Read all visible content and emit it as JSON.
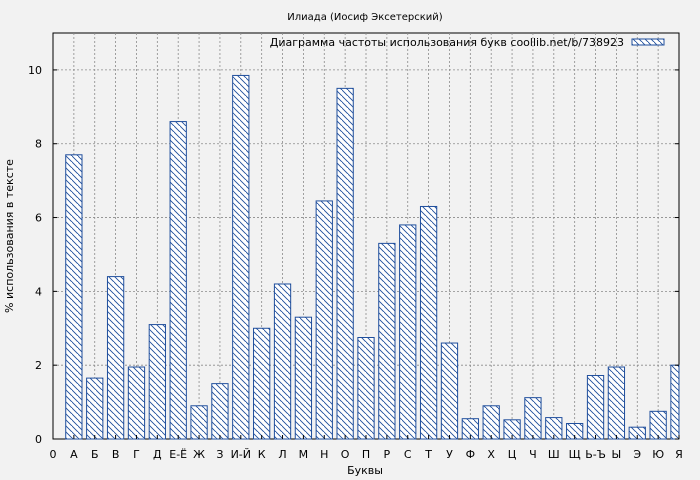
{
  "chart_data": {
    "type": "bar",
    "title": "Илиада (Иосиф Эксетерский)",
    "xlabel": "Буквы",
    "ylabel": "% использования в тексте",
    "legend": "Диаграмма частоты использования букв coollib.net/b/738923",
    "legend_position": "top-right",
    "grid": true,
    "x_ticks": [
      "0",
      "А",
      "Б",
      "В",
      "Г",
      "Д",
      "Е-Ё",
      "Ж",
      "З",
      "И-Й",
      "К",
      "Л",
      "М",
      "Н",
      "О",
      "П",
      "Р",
      "С",
      "Т",
      "У",
      "Ф",
      "Х",
      "Ц",
      "Ч",
      "Ш",
      "Щ",
      "Ь-Ъ",
      "Ы",
      "Э",
      "Ю",
      "Я"
    ],
    "categories": [
      "А",
      "Б",
      "В",
      "Г",
      "Д",
      "Е-Ё",
      "Ж",
      "З",
      "И-Й",
      "К",
      "Л",
      "М",
      "Н",
      "О",
      "П",
      "Р",
      "С",
      "Т",
      "У",
      "Ф",
      "Х",
      "Ц",
      "Ч",
      "Ш",
      "Щ",
      "Ь-Ъ",
      "Ы",
      "Э",
      "Ю",
      "Я"
    ],
    "values": [
      7.7,
      1.65,
      4.4,
      1.95,
      3.1,
      8.6,
      0.9,
      1.5,
      9.85,
      3.0,
      4.2,
      3.3,
      6.45,
      9.5,
      2.75,
      5.3,
      5.8,
      6.3,
      2.6,
      0.55,
      0.9,
      0.52,
      1.12,
      0.58,
      0.42,
      1.72,
      1.95,
      0.32,
      0.75,
      2.0
    ],
    "y_ticks": [
      0,
      2,
      4,
      6,
      8,
      10
    ],
    "ylim": [
      0,
      11
    ],
    "colors": {
      "bar_stroke": "#1f4e9c",
      "hatch": "#1f4e9c",
      "bar_fill": "#ffffff",
      "grid": "#8a8a8a",
      "background": "#f2f2f2"
    }
  }
}
